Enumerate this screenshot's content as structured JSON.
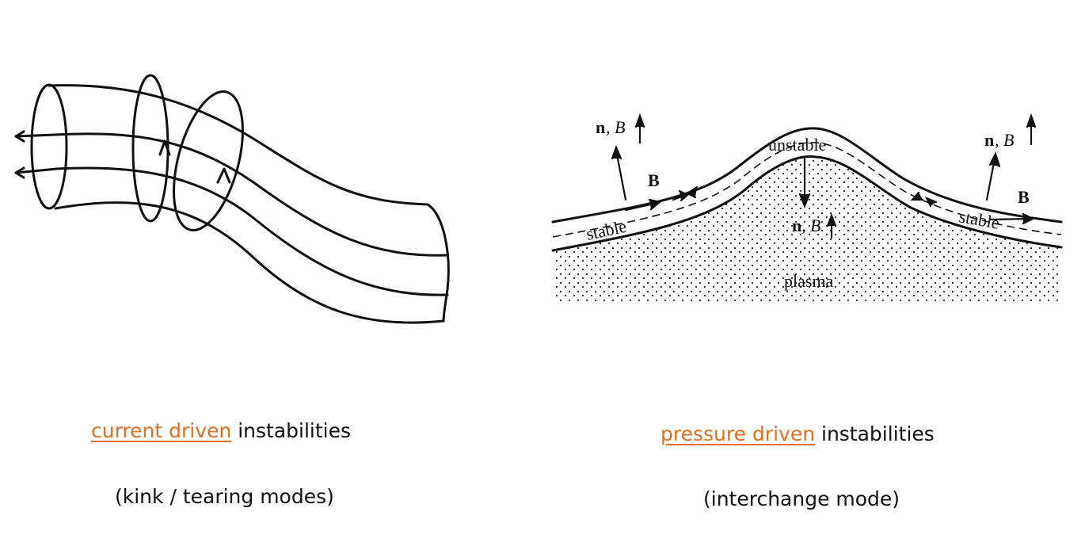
{
  "left_panel": {
    "caption_highlight": "current driven",
    "caption_rest": " instabilities",
    "subcaption": "(kink / tearing modes)"
  },
  "right_panel": {
    "caption_highlight": "pressure driven",
    "caption_rest": " instabilities",
    "subcaption": "(interchange mode)",
    "labels": {
      "n_left": "n",
      "b_left": ", B",
      "B_left": "B",
      "stable_left": "stable",
      "unstable": "unstable",
      "n_center": "n",
      "b_center": ", B",
      "plasma": "plasma",
      "n_right": "n",
      "b_right": ", B",
      "B_right": "B",
      "stable_right": "stable"
    }
  },
  "colors": {
    "accent": "#e07020",
    "text": "#111111"
  }
}
